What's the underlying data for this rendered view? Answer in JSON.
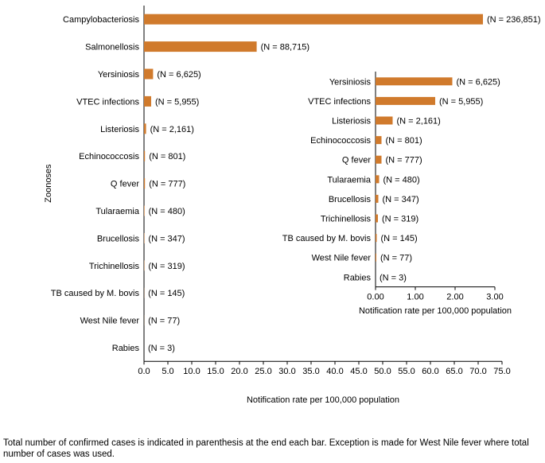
{
  "chart_data": [
    {
      "type": "bar",
      "orientation": "horizontal",
      "xlabel": "Notification rate per 100,000 population",
      "ylabel": "Zoonoses",
      "xlim": [
        0,
        75
      ],
      "xticks": [
        "0.0",
        "5.0",
        "10.0",
        "15.0",
        "20.0",
        "25.0",
        "30.0",
        "35.0",
        "40.0",
        "45.0",
        "50.0",
        "55.0",
        "60.0",
        "65.0",
        "70.0",
        "75.0"
      ],
      "bar_color": "#D07A2C",
      "grid": false,
      "categories": [
        "Campylobacteriosis",
        "Salmonellosis",
        "Yersiniosis",
        "VTEC infections",
        "Listeriosis",
        "Echinococcosis",
        "Q fever",
        "Tularaemia",
        "Brucellosis",
        "Trichinellosis",
        "TB caused by M. bovis",
        "West Nile fever",
        "Rabies"
      ],
      "values": [
        71.0,
        23.6,
        1.9,
        1.5,
        0.43,
        0.2,
        0.2,
        0.1,
        0.07,
        0.06,
        0.03,
        0.02,
        0.0
      ],
      "labels": [
        "(N = 236,851)",
        "(N = 88,715)",
        "(N = 6,625)",
        "(N = 5,955)",
        "(N = 2,161)",
        "(N = 801)",
        "(N = 777)",
        "(N = 480)",
        "(N = 347)",
        "(N = 319)",
        "(N = 145)",
        "(N = 77)",
        "(N = 3)"
      ]
    },
    {
      "type": "bar",
      "orientation": "horizontal",
      "xlabel": "Notification rate per 100,000 population",
      "ylabel": "",
      "xlim": [
        0,
        3
      ],
      "xticks": [
        "0.00",
        "1.00",
        "2.00",
        "3.00"
      ],
      "bar_color": "#D07A2C",
      "grid": false,
      "categories": [
        "Yersiniosis",
        "VTEC infections",
        "Listeriosis",
        "Echinococcosis",
        "Q fever",
        "Tularaemia",
        "Brucellosis",
        "Trichinellosis",
        "TB caused by M. bovis",
        "West Nile fever",
        "Rabies"
      ],
      "values": [
        1.93,
        1.5,
        0.43,
        0.15,
        0.15,
        0.09,
        0.07,
        0.06,
        0.03,
        0.02,
        0.0
      ],
      "labels": [
        "(N = 6,625)",
        "(N = 5,955)",
        "(N = 2,161)",
        "(N = 801)",
        "(N = 777)",
        "(N = 480)",
        "(N = 347)",
        "(N = 319)",
        "(N = 145)",
        "(N = 77)",
        "(N = 3)"
      ]
    }
  ],
  "footnote": "Total number of confirmed cases is indicated in parenthesis at the end each bar. Exception is made for West Nile fever where total number of cases was used."
}
